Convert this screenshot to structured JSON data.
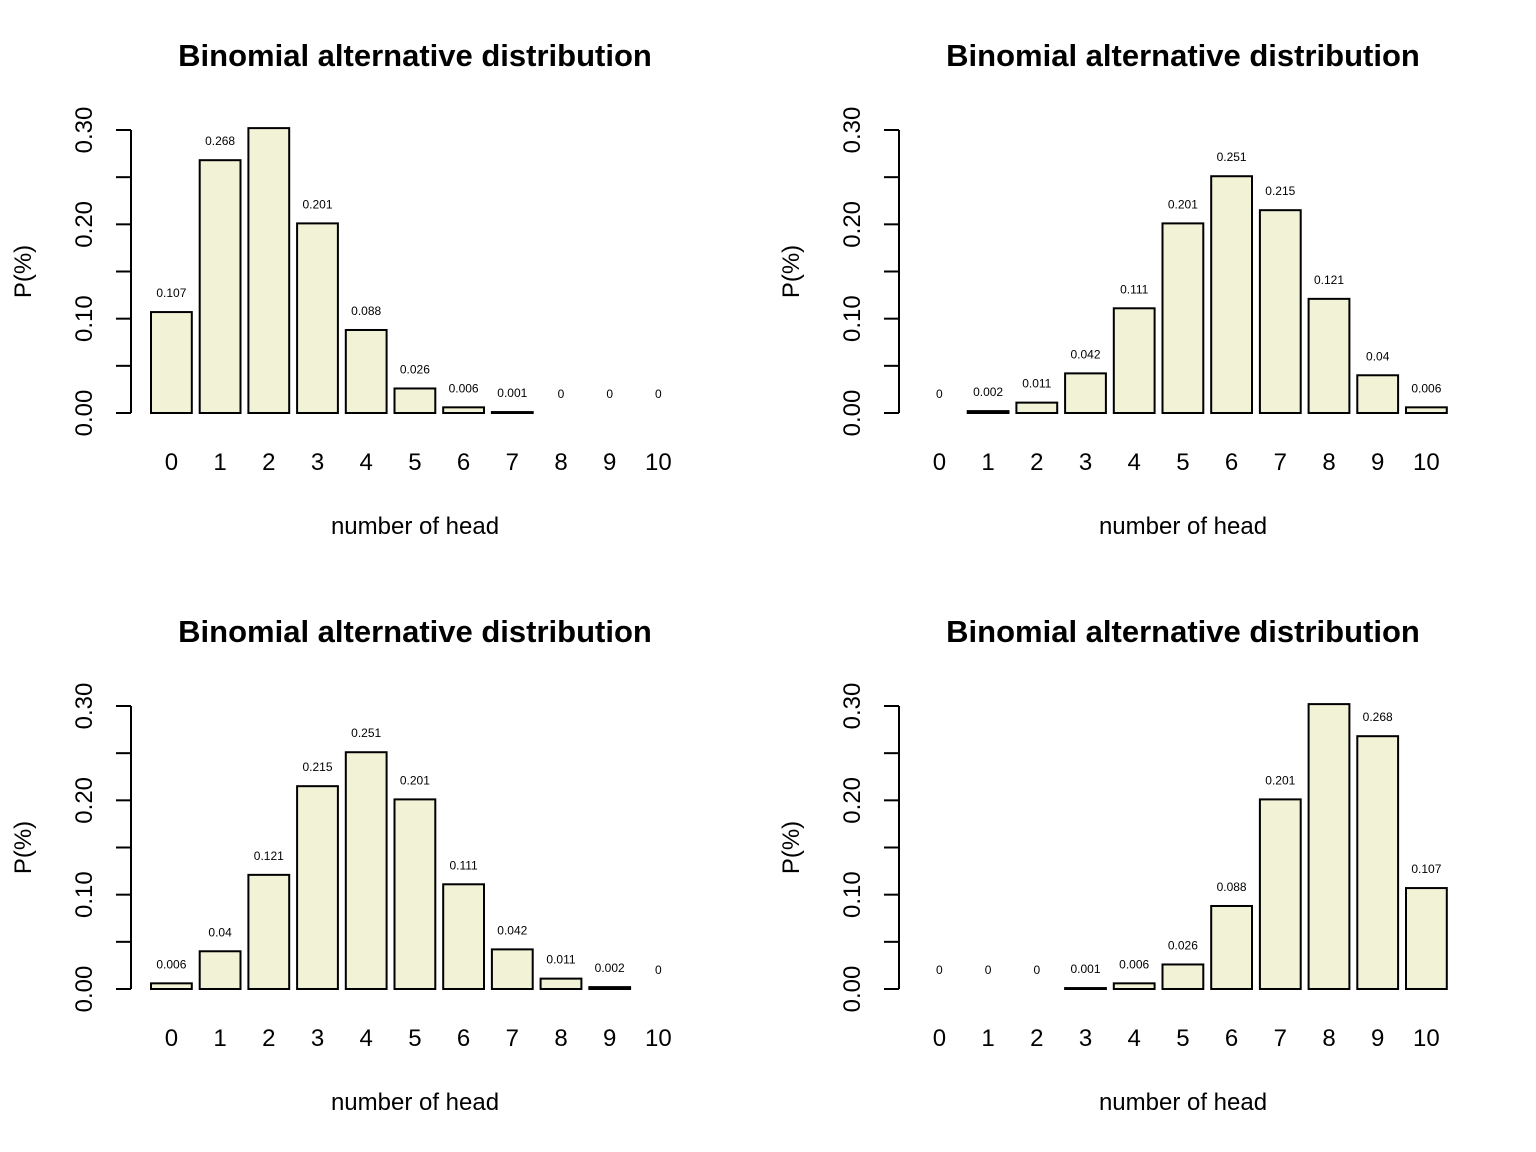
{
  "figure": {
    "bar_color": "#f2f2d6",
    "stroke_color": "#000000"
  },
  "chart_data": [
    {
      "type": "bar",
      "title": "Binomial alternative distribution",
      "xlabel": "number of head",
      "ylabel": "P(%)",
      "ylim": [
        0,
        0.3
      ],
      "yticks": [
        "0.00",
        "0.10",
        "0.20",
        "0.30"
      ],
      "categories": [
        "0",
        "1",
        "2",
        "3",
        "4",
        "5",
        "6",
        "7",
        "8",
        "9",
        "10"
      ],
      "values": [
        0.107,
        0.268,
        0.302,
        0.201,
        0.088,
        0.026,
        0.006,
        0.001,
        0,
        0,
        0
      ],
      "value_labels": [
        "0.107",
        "0.268",
        "",
        "0.201",
        "0.088",
        "0.026",
        "0.006",
        "0.001",
        "0",
        "0",
        "0"
      ]
    },
    {
      "type": "bar",
      "title": "Binomial alternative distribution",
      "xlabel": "number of head",
      "ylabel": "P(%)",
      "ylim": [
        0,
        0.3
      ],
      "yticks": [
        "0.00",
        "0.10",
        "0.20",
        "0.30"
      ],
      "categories": [
        "0",
        "1",
        "2",
        "3",
        "4",
        "5",
        "6",
        "7",
        "8",
        "9",
        "10"
      ],
      "values": [
        0,
        0.002,
        0.011,
        0.042,
        0.111,
        0.201,
        0.251,
        0.215,
        0.121,
        0.04,
        0.006
      ],
      "value_labels": [
        "0",
        "0.002",
        "0.011",
        "0.042",
        "0.111",
        "0.201",
        "0.251",
        "0.215",
        "0.121",
        "0.04",
        "0.006"
      ]
    },
    {
      "type": "bar",
      "title": "Binomial alternative distribution",
      "xlabel": "number of head",
      "ylabel": "P(%)",
      "ylim": [
        0,
        0.3
      ],
      "yticks": [
        "0.00",
        "0.10",
        "0.20",
        "0.30"
      ],
      "categories": [
        "0",
        "1",
        "2",
        "3",
        "4",
        "5",
        "6",
        "7",
        "8",
        "9",
        "10"
      ],
      "values": [
        0.006,
        0.04,
        0.121,
        0.215,
        0.251,
        0.201,
        0.111,
        0.042,
        0.011,
        0.002,
        0
      ],
      "value_labels": [
        "0.006",
        "0.04",
        "0.121",
        "0.215",
        "0.251",
        "0.201",
        "0.111",
        "0.042",
        "0.011",
        "0.002",
        "0"
      ]
    },
    {
      "type": "bar",
      "title": "Binomial alternative distribution",
      "xlabel": "number of head",
      "ylabel": "P(%)",
      "ylim": [
        0,
        0.3
      ],
      "yticks": [
        "0.00",
        "0.10",
        "0.20",
        "0.30"
      ],
      "categories": [
        "0",
        "1",
        "2",
        "3",
        "4",
        "5",
        "6",
        "7",
        "8",
        "9",
        "10"
      ],
      "values": [
        0,
        0,
        0,
        0.001,
        0.006,
        0.026,
        0.088,
        0.201,
        0.302,
        0.268,
        0.107
      ],
      "value_labels": [
        "0",
        "0",
        "0",
        "0.001",
        "0.006",
        "0.026",
        "0.088",
        "0.201",
        "",
        "0.268",
        "0.107"
      ]
    }
  ]
}
